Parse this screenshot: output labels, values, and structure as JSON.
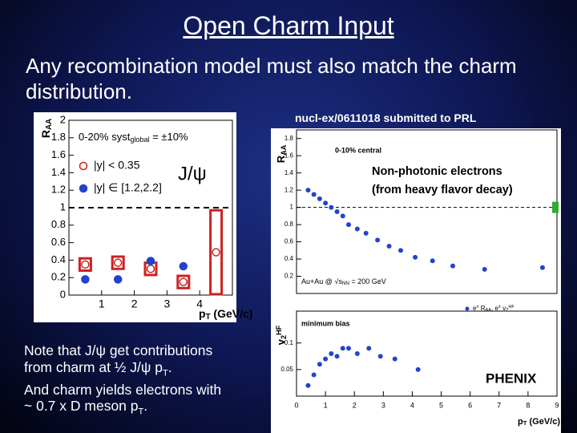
{
  "title": "Open Charm Input",
  "body": "Any recombination model must also match the charm distribution.",
  "citation": "nucl-ex/0611018 submitted to PRL",
  "note": [
    [
      "Note that J/ψ get contributions"
    ],
    [
      "from charm at ½ J/ψ p",
      {
        "sub": "T"
      },
      "."
    ],
    [
      "And charm yields electrons with"
    ],
    [
      "~ 0.7 x D meson p",
      {
        "sub": "T"
      },
      "."
    ]
  ],
  "figures": [
    {
      "type": "scatter",
      "label": "J/ψ",
      "ylabel": [
        "R",
        {
          "sub": "AA"
        }
      ],
      "xlabel": [
        "p",
        {
          "sub": "T"
        },
        " (GeV/c)"
      ],
      "syst_note": [
        "0-20% syst",
        {
          "sub": "global"
        },
        " = ±10%"
      ],
      "xlim": [
        0,
        5
      ],
      "ylim": [
        0,
        2
      ],
      "xticks": [
        1,
        2,
        3,
        4
      ],
      "yticks": [
        0,
        0.2,
        0.4,
        0.6,
        0.8,
        1,
        1.2,
        1.4,
        1.6,
        1.8,
        2
      ],
      "reference_line": 1,
      "series": [
        {
          "name": "|y| < 0.35",
          "marker": "open",
          "color": "#cc2222",
          "x": [
            0.5,
            1.5,
            2.5,
            3.5,
            4.5
          ],
          "values": [
            0.35,
            0.37,
            0.3,
            0.15,
            0.49
          ],
          "syst": [
            0.07,
            0.07,
            0.07,
            0.07,
            0.48
          ]
        },
        {
          "name": "|y| ∈ [1.2,2.2]",
          "marker": "filled",
          "color": "#2244cc",
          "x": [
            0.5,
            1.5,
            2.5,
            3.5
          ],
          "values": [
            0.18,
            0.18,
            0.39,
            0.33
          ]
        }
      ]
    },
    {
      "type": "scatter",
      "annotation": [
        "Non-photonic electrons",
        "(from heavy flavor decay)"
      ],
      "xlabel": [
        "p",
        {
          "sub": "T"
        },
        " (GeV/c)"
      ],
      "xlim": [
        0,
        9
      ],
      "xticks": [
        0,
        1,
        2,
        3,
        4,
        5,
        6,
        7,
        8,
        9
      ],
      "experiment": "PHENIX",
      "legend": [
        "e",
        {
          "sup": "±"
        },
        " R",
        {
          "sub": "AA"
        },
        ", e",
        {
          "sup": "±"
        },
        " v",
        {
          "sub": "2"
        },
        {
          "sup": "HF"
        }
      ],
      "panels": [
        {
          "ylabel": [
            "R",
            {
              "sub": "AA"
            }
          ],
          "centrality": "0-10% central",
          "system": [
            "Au+Au @ √s",
            {
              "sub": "NN"
            },
            " = 200 GeV"
          ],
          "ylim": [
            0,
            1.9
          ],
          "yticks": [
            0.2,
            0.4,
            0.6,
            0.8,
            1,
            1.2,
            1.4,
            1.6,
            1.8
          ],
          "reference_line": 1,
          "color": "#2244cc",
          "x": [
            0.4,
            0.6,
            0.8,
            1.0,
            1.2,
            1.4,
            1.6,
            1.8,
            2.1,
            2.4,
            2.8,
            3.2,
            3.6,
            4.1,
            4.7,
            5.4,
            6.5,
            8.5
          ],
          "values": [
            1.2,
            1.15,
            1.1,
            1.05,
            1.0,
            0.95,
            0.9,
            0.8,
            0.75,
            0.7,
            0.62,
            0.55,
            0.5,
            0.42,
            0.38,
            0.32,
            0.28,
            0.3
          ]
        },
        {
          "ylabel": [
            "v",
            {
              "sub": "2"
            },
            {
              "sup": "HF"
            }
          ],
          "centrality": "minimum bias",
          "ylim": [
            0,
            0.16
          ],
          "yticks": [
            0.05,
            0.1
          ],
          "color": "#2244cc",
          "x": [
            0.4,
            0.6,
            0.8,
            1.0,
            1.2,
            1.4,
            1.6,
            1.8,
            2.1,
            2.5,
            2.9,
            3.4,
            4.2
          ],
          "values": [
            0.02,
            0.04,
            0.06,
            0.07,
            0.08,
            0.075,
            0.09,
            0.09,
            0.08,
            0.09,
            0.075,
            0.07,
            0.05
          ]
        }
      ]
    }
  ]
}
